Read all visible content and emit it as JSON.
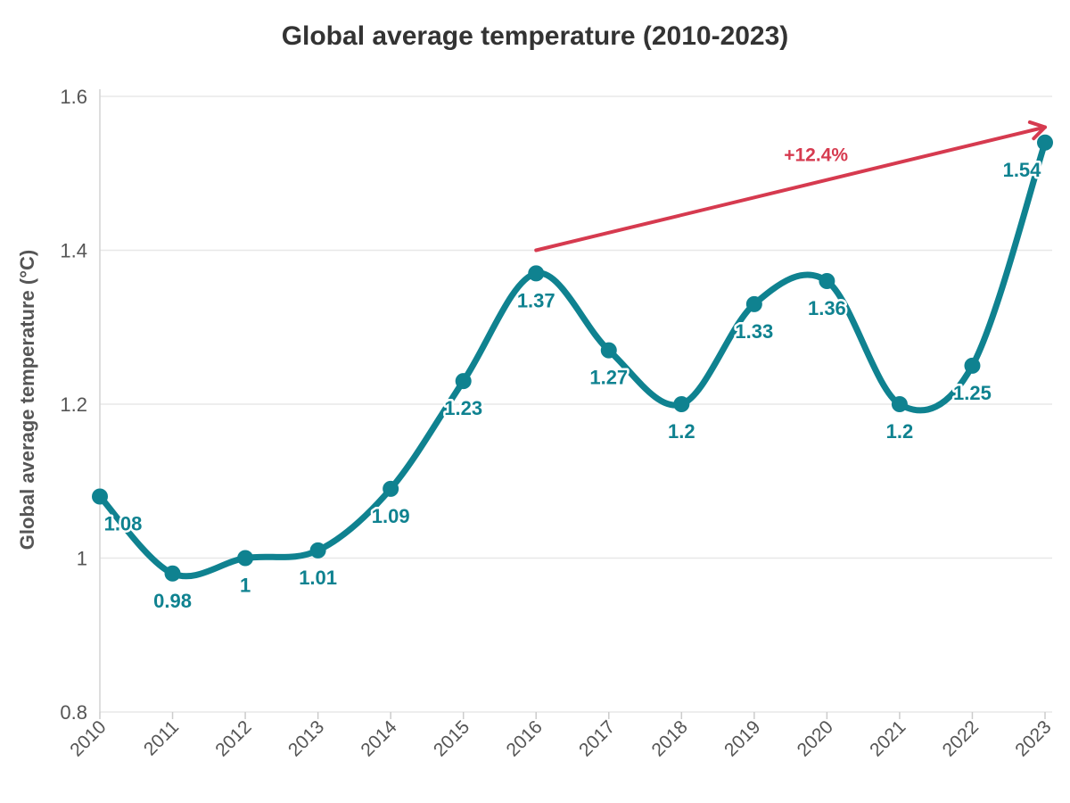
{
  "chart_data": {
    "type": "line",
    "title": "Global average temperature (2010-2023)",
    "xlabel": "",
    "ylabel": "Global average temperature (°C)",
    "categories": [
      "2010",
      "2011",
      "2012",
      "2013",
      "2014",
      "2015",
      "2016",
      "2017",
      "2018",
      "2019",
      "2020",
      "2021",
      "2022",
      "2023"
    ],
    "series": [
      {
        "name": "Global average temperature",
        "values": [
          1.08,
          0.98,
          1,
          1.01,
          1.09,
          1.23,
          1.37,
          1.27,
          1.2,
          1.33,
          1.36,
          1.2,
          1.25,
          1.54
        ],
        "labels": [
          "1.08",
          "0.98",
          "1",
          "1.01",
          "1.09",
          "1.23",
          "1.37",
          "1.27",
          "1.2",
          "1.33",
          "1.36",
          "1.2",
          "1.25",
          "1.54"
        ],
        "color": "#0f8290"
      }
    ],
    "ylim": [
      0.8,
      1.6
    ],
    "yticks": [
      0.8,
      1,
      1.2,
      1.4,
      1.6
    ],
    "ytick_labels": [
      "0.8",
      "1",
      "1.2",
      "1.4",
      "1.6"
    ],
    "grid": true,
    "annotation": {
      "text": "+12.4%",
      "from_category": "2016",
      "from_value": 1.4,
      "to_category": "2023",
      "to_value": 1.56,
      "color": "#d63a4f"
    }
  }
}
